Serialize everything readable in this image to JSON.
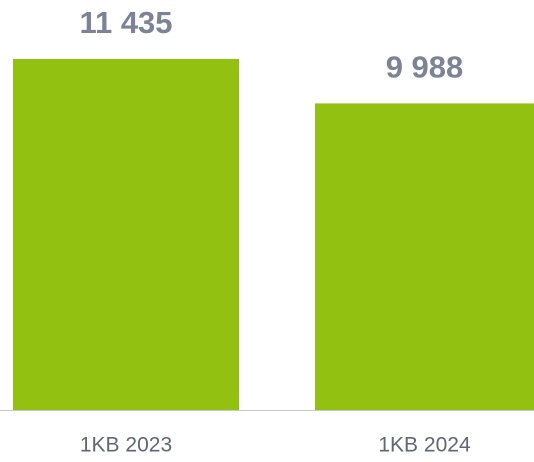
{
  "chart_data": {
    "type": "bar",
    "categories": [
      "1KB 2023",
      "1KB 2024"
    ],
    "values": [
      11435,
      9988
    ],
    "value_labels": [
      "11 435",
      "9 988"
    ],
    "color": "#93c111"
  }
}
